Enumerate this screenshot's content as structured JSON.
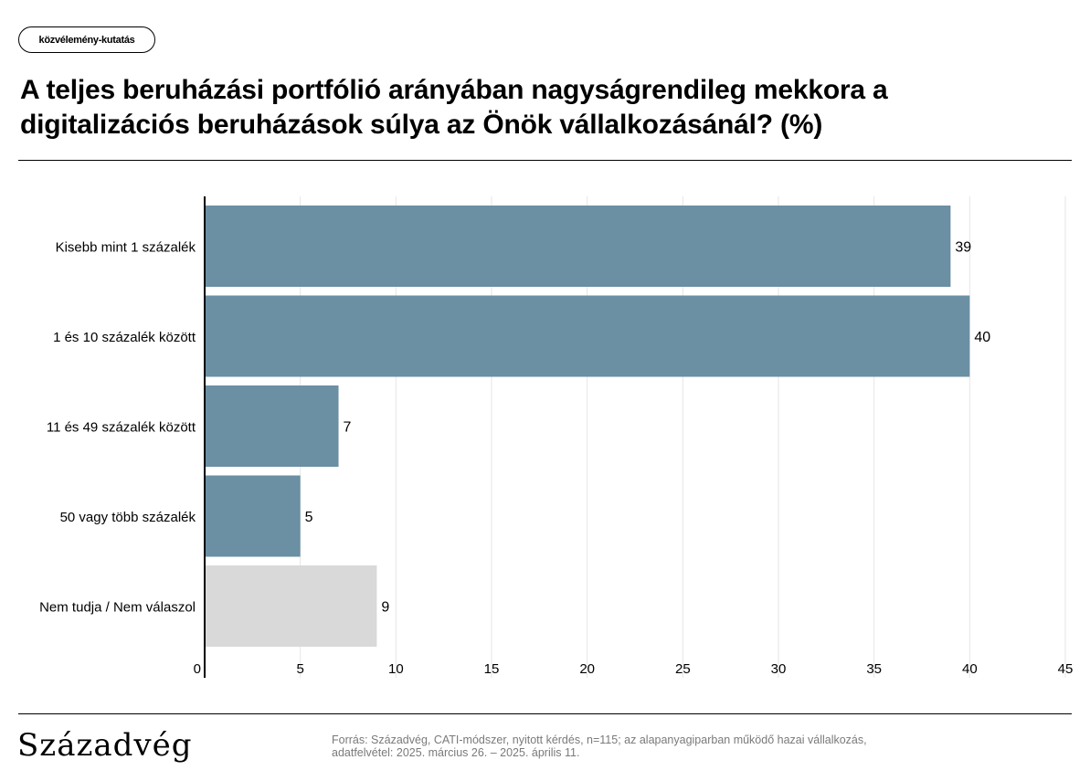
{
  "tag": "közvélemény-kutatás",
  "title": "A teljes beruházási portfólió arányában nagyságrendileg mekkora a digitalizációs beruházások súlya az Önök vállalkozásánál? (%)",
  "brand": "Századvég",
  "source": {
    "line1": "Forrás: Századvég, CATI-módszer, nyitott kérdés, n=115; az alapanyagiparban működő hazai vállalkozás,",
    "line2": "adatfelvétel: 2025. március 26. – 2025. április 11."
  },
  "colors": {
    "primary_bar": "#6b8fa3",
    "dont_know_bar": "#d9d9d9",
    "grid": "#e6e6e6"
  },
  "chart_data": {
    "type": "bar",
    "orientation": "horizontal",
    "categories": [
      "Kisebb mint 1 százalék",
      "1 és 10 százalék között",
      "11 és 49 százalék között",
      "50 vagy több százalék",
      "Nem tudja / Nem válaszol"
    ],
    "values": [
      39,
      40,
      7,
      5,
      9
    ],
    "bar_labels": [
      "39",
      "40",
      "7",
      "5",
      "9"
    ],
    "bar_colors": [
      "#6b8fa3",
      "#6b8fa3",
      "#6b8fa3",
      "#6b8fa3",
      "#d9d9d9"
    ],
    "xlim": [
      0,
      45
    ],
    "xticks": [
      0,
      5,
      10,
      15,
      20,
      25,
      30,
      35,
      40,
      45
    ],
    "grid": true
  }
}
